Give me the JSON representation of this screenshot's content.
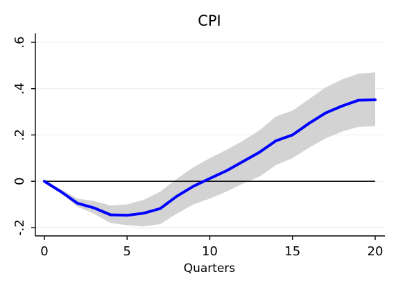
{
  "chart_data": {
    "type": "line",
    "title": "CPI",
    "xlabel": "Quarters",
    "ylabel": "",
    "xlim": [
      0,
      20
    ],
    "ylim": [
      -0.2,
      0.6
    ],
    "x_ticks": [
      0,
      5,
      10,
      15,
      20
    ],
    "x_tick_labels": [
      "0",
      "5",
      "10",
      "15",
      "20"
    ],
    "y_ticks": [
      -0.2,
      0,
      0.2,
      0.4,
      0.6
    ],
    "y_tick_labels": [
      "-.2",
      "0",
      ".2",
      ".4",
      ".6"
    ],
    "grid": true,
    "zero_line": 0,
    "series": [
      {
        "role": "point-estimate",
        "color": "#0000ff",
        "x": [
          0,
          1,
          2,
          3,
          4,
          5,
          6,
          7,
          8,
          9,
          10,
          11,
          12,
          13,
          14,
          15,
          16,
          17,
          18,
          19,
          20
        ],
        "values": [
          0,
          -0.045,
          -0.095,
          -0.115,
          -0.145,
          -0.147,
          -0.138,
          -0.118,
          -0.065,
          -0.022,
          0.012,
          0.045,
          0.085,
          0.125,
          0.175,
          0.2,
          0.25,
          0.295,
          0.325,
          0.35,
          0.352
        ]
      }
    ],
    "band": {
      "color": "#d3d3d3",
      "x": [
        0,
        1,
        2,
        3,
        4,
        5,
        6,
        7,
        8,
        9,
        10,
        11,
        12,
        13,
        14,
        15,
        16,
        17,
        18,
        19,
        20
      ],
      "lower": [
        0,
        -0.05,
        -0.11,
        -0.14,
        -0.18,
        -0.19,
        -0.195,
        -0.185,
        -0.14,
        -0.1,
        -0.075,
        -0.045,
        -0.01,
        0.02,
        0.07,
        0.1,
        0.145,
        0.185,
        0.215,
        0.235,
        0.238
      ],
      "upper": [
        0,
        -0.035,
        -0.075,
        -0.085,
        -0.105,
        -0.1,
        -0.08,
        -0.045,
        0.01,
        0.06,
        0.1,
        0.135,
        0.175,
        0.22,
        0.28,
        0.305,
        0.355,
        0.405,
        0.44,
        0.465,
        0.47
      ]
    }
  }
}
